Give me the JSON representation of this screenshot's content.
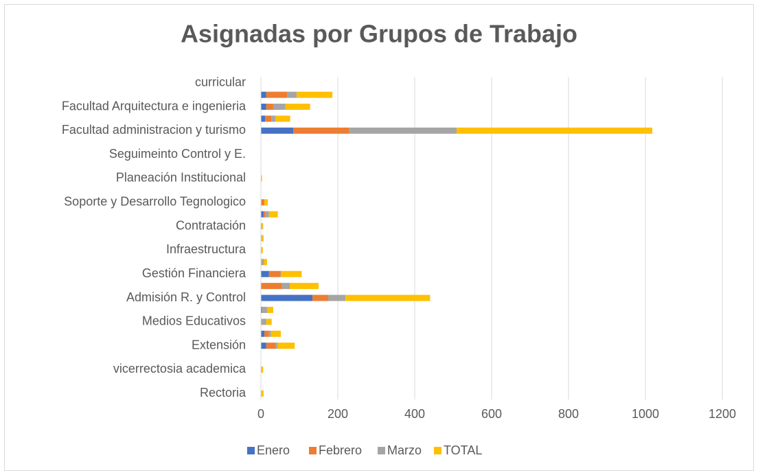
{
  "chart_data": {
    "type": "bar",
    "orientation": "horizontal",
    "stacked": true,
    "title": "Asignadas por Grupos de Trabajo",
    "categories": [
      "Rectoria",
      null,
      "vicerrectosia academica",
      null,
      "Extensión",
      null,
      "Medios Educativos",
      null,
      "Admisión R. y Control",
      null,
      "Gestión Financiera",
      null,
      "Infraestructura",
      null,
      "Contratación",
      null,
      "Soporte y Desarrollo Tegnologico",
      null,
      "Planeación Institucional",
      null,
      "Seguimeinto Control y E.",
      null,
      "Facultad administracion y turismo",
      null,
      "Facultad Arquitectura e ingenieria",
      null,
      "curricular"
    ],
    "series": [
      {
        "name": "Enero",
        "color": "#4472c4",
        "values": [
          0,
          0,
          0,
          0,
          14,
          9,
          0,
          3,
          134,
          0,
          21,
          1,
          0,
          0,
          0,
          7,
          1,
          0,
          0,
          0,
          0,
          0,
          84,
          11,
          14,
          14,
          0
        ]
      },
      {
        "name": "Febrero",
        "color": "#ed7d31",
        "values": [
          1,
          0,
          1,
          0,
          25,
          12,
          2,
          1,
          41,
          55,
          30,
          2,
          1,
          1,
          2,
          5,
          8,
          0,
          0,
          0,
          0,
          0,
          146,
          16,
          18,
          54,
          0
        ]
      },
      {
        "name": "Marzo",
        "color": "#a5a5a5",
        "values": [
          1,
          0,
          1,
          0,
          5,
          5,
          12,
          12,
          45,
          20,
          2,
          5,
          1,
          2,
          1,
          9,
          0,
          0,
          1,
          0,
          0,
          0,
          279,
          11,
          32,
          25,
          0
        ]
      },
      {
        "name": "TOTAL",
        "color": "#ffc000",
        "values": [
          5,
          0,
          4,
          0,
          44,
          26,
          14,
          16,
          220,
          75,
          53,
          8,
          3,
          4,
          3,
          23,
          9,
          0,
          2,
          0,
          1,
          0,
          509,
          38,
          64,
          93,
          0
        ]
      }
    ],
    "xlim": [
      0,
      1200
    ],
    "xticks": [
      0,
      200,
      400,
      600,
      800,
      1000,
      1200
    ],
    "grid": true,
    "legend": "bottom"
  }
}
